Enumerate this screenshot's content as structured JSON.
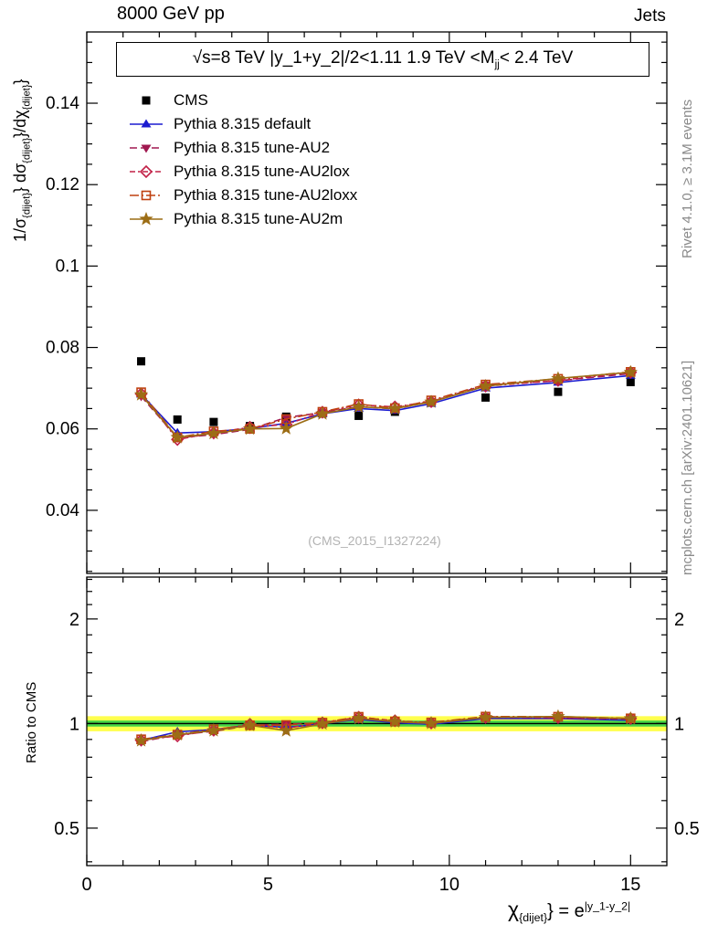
{
  "header": {
    "left": "8000 GeV pp",
    "right": "Jets"
  },
  "panel_title": {
    "pre": "√s=8 TeV  |y_1+y_2|/2<1.11  1.9 TeV <M",
    "sub": "jj",
    "post": "< 2.4 TeV"
  },
  "axes": {
    "ylabel_main": {
      "p1": "1/σ",
      "s1": "{dijet}",
      "p2": "} dσ",
      "s2": "{dijet}",
      "p3": "}/dχ",
      "s3": "{dijet}",
      "p4": "}"
    },
    "ylabel_ratio": "Ratio to CMS",
    "xlabel": {
      "p1": "χ",
      "s1": "{dijet}",
      "p2": "} = e",
      "sup": "|y_1-y_2|"
    }
  },
  "side_notes": {
    "top_right": "Rivet 4.1.0, ≥ 3.1M events",
    "bottom_right": "mcplots.cern.ch [arXiv:2401.10621]"
  },
  "watermark": "(CMS_2015_I1327224)",
  "chart_data": {
    "type": "line",
    "x": [
      1.5,
      2.5,
      3.5,
      4.5,
      5.5,
      6.5,
      7.5,
      8.5,
      9.5,
      11,
      13,
      15
    ],
    "xlim": [
      0,
      16
    ],
    "xticks": [
      0,
      5,
      10,
      15
    ],
    "ylim_main": [
      0.0245,
      0.1575
    ],
    "yticks_main": [
      0.04,
      0.06,
      0.08,
      0.1,
      0.12,
      0.14
    ],
    "ylim_ratio": [
      0.39,
      2.64
    ],
    "yticks_ratio": [
      2,
      1,
      0.5
    ],
    "ratio_minor_ticks": [
      0.4,
      0.6,
      0.7,
      0.8,
      0.9,
      1.2,
      1.4,
      1.6,
      1.8,
      2.2,
      2.4,
      2.6
    ],
    "ratio_reference": "CMS",
    "ratio_err": 0.012,
    "bands": {
      "yellow_halfwidth": 0.05,
      "green_halfwidth": 0.02,
      "yellow_color": "#ffff4d",
      "green_color": "#46d446"
    },
    "series": [
      {
        "name": "CMS",
        "color": "#000000",
        "marker": "square",
        "line": "none",
        "err": 0.0009,
        "values": [
          0.0766,
          0.0623,
          0.0617,
          0.0607,
          0.063,
          0.0638,
          0.0632,
          0.0642,
          0.0665,
          0.0677,
          0.0691,
          0.0715
        ]
      },
      {
        "name": "Pythia 8.315 default",
        "color": "#1c1cd0",
        "marker": "triangle-up",
        "line": "solid",
        "values": [
          0.0685,
          0.059,
          0.0593,
          0.0601,
          0.0614,
          0.0637,
          0.065,
          0.0645,
          0.0662,
          0.07,
          0.0714,
          0.0731
        ]
      },
      {
        "name": "Pythia 8.315 tune-AU2",
        "color": "#a01850",
        "marker": "triangle-down",
        "line": "dashed",
        "values": [
          0.068,
          0.0578,
          0.0586,
          0.0599,
          0.0628,
          0.064,
          0.0655,
          0.0649,
          0.0667,
          0.0708,
          0.0718,
          0.0736
        ]
      },
      {
        "name": "Pythia 8.315 tune-AU2lox",
        "color": "#c22047",
        "marker": "diamond-open",
        "line": "dashdot",
        "values": [
          0.0686,
          0.0574,
          0.059,
          0.0604,
          0.0611,
          0.0641,
          0.0659,
          0.0654,
          0.0667,
          0.0705,
          0.0719,
          0.0739
        ]
      },
      {
        "name": "Pythia 8.315 tune-AU2loxx",
        "color": "#bf4010",
        "marker": "square-open",
        "line": "longdashdot",
        "values": [
          0.069,
          0.0579,
          0.0594,
          0.06,
          0.0624,
          0.0642,
          0.0661,
          0.0651,
          0.067,
          0.0709,
          0.0723,
          0.074
        ]
      },
      {
        "name": "Pythia 8.315 tune-AU2m",
        "color": "#9c6d15",
        "marker": "star",
        "line": "solid",
        "values": [
          0.0684,
          0.0579,
          0.0589,
          0.06,
          0.0601,
          0.0637,
          0.0654,
          0.065,
          0.0666,
          0.0705,
          0.0724,
          0.0739
        ]
      }
    ]
  }
}
